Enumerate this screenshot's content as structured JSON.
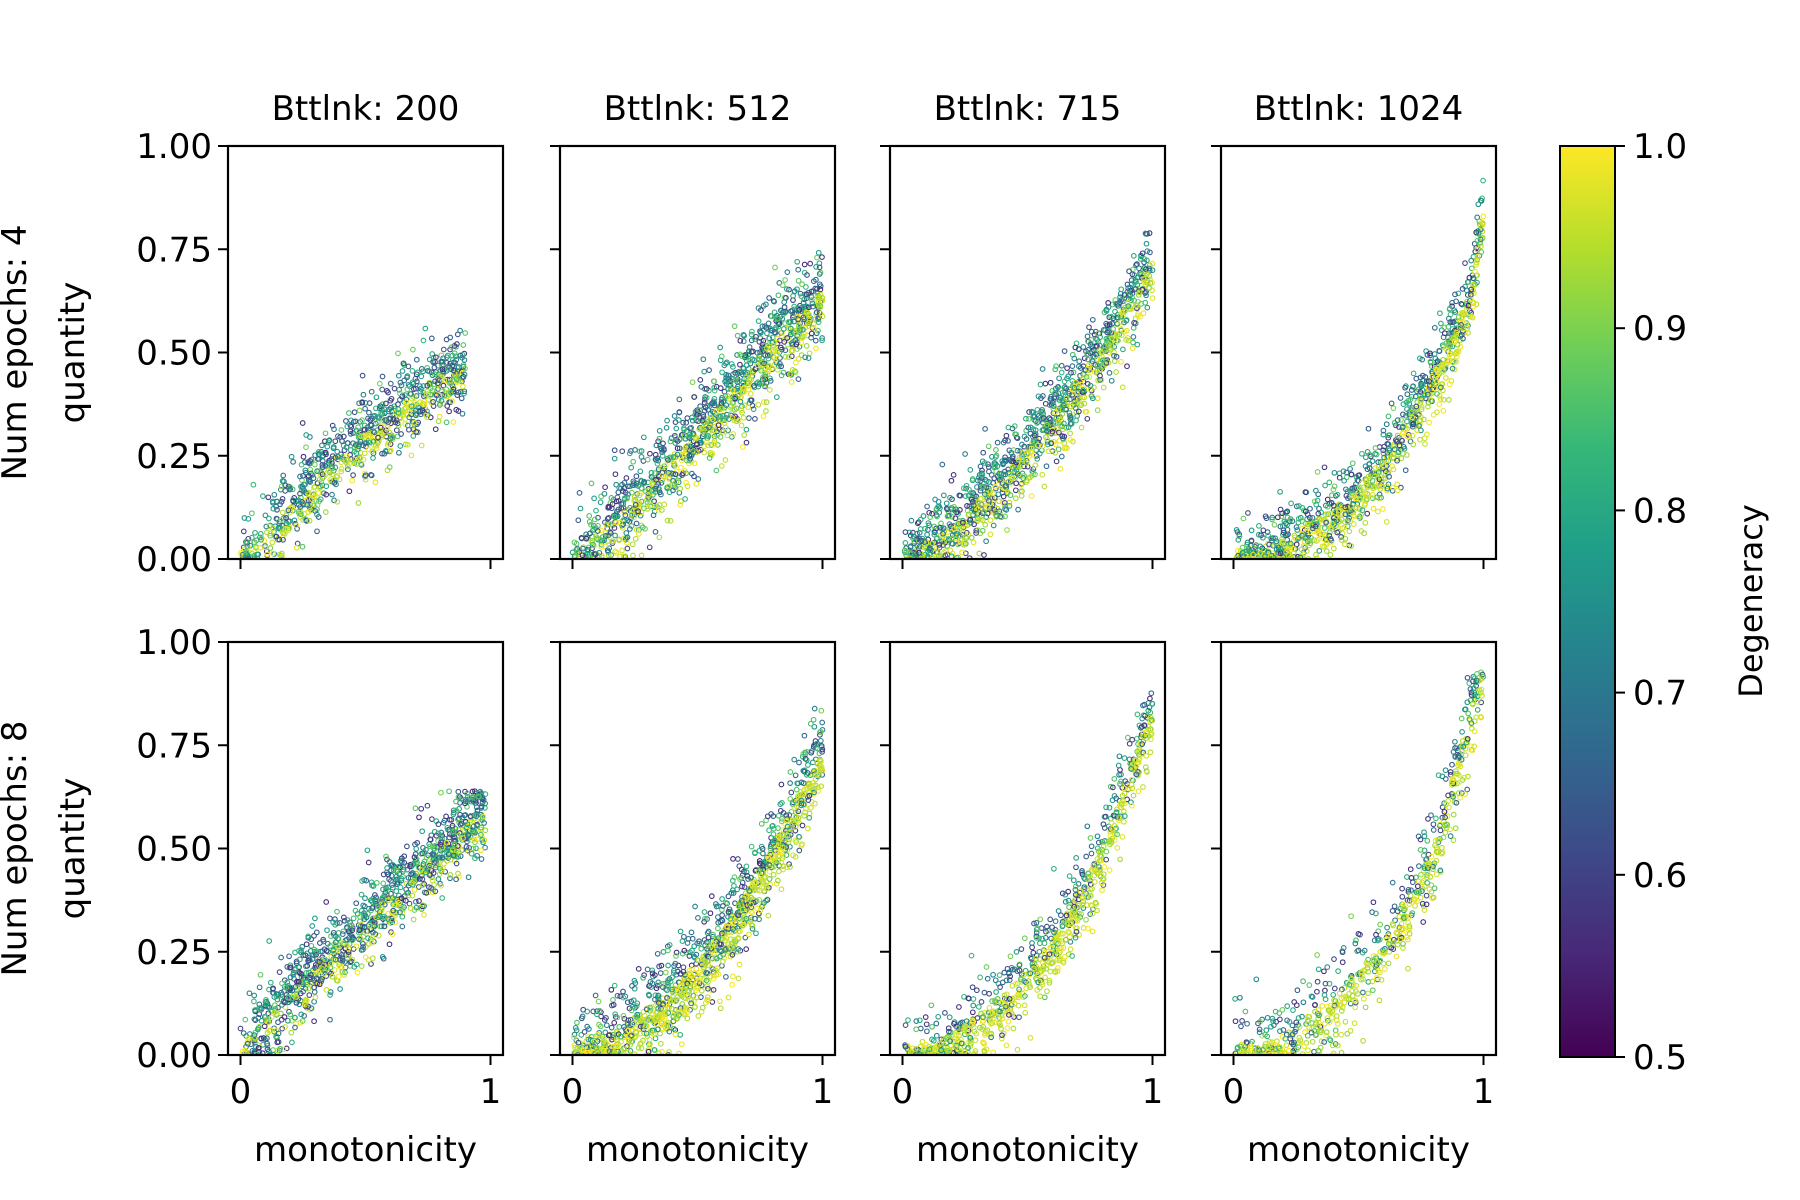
{
  "figure": {
    "colorbar": {
      "label": "Degeneracy",
      "range": [
        0.5,
        1.0
      ],
      "ticks": [
        "0.5",
        "0.6",
        "0.7",
        "0.8",
        "0.9",
        "1.0"
      ],
      "colormap": [
        "#440154",
        "#482878",
        "#3e4989",
        "#31688e",
        "#26828e",
        "#1f9e89",
        "#35b779",
        "#6ece58",
        "#b5de2b",
        "#fde725"
      ]
    }
  },
  "chart_data": {
    "type": "scatter",
    "layout": "2 rows x 4 columns of scatter panels",
    "column_titles": [
      "Bttlnk: 200",
      "Bttlnk: 512",
      "Bttlnk: 715",
      "Bttlnk: 1024"
    ],
    "row_labels": [
      [
        "Num epochs: 4",
        "quantity"
      ],
      [
        "Num epochs: 8",
        "quantity"
      ]
    ],
    "xlabel": "monotonicity",
    "xlim": [
      -0.05,
      1.05
    ],
    "ylim": [
      0,
      1
    ],
    "x_ticks": [
      "0",
      "1"
    ],
    "y_ticks": [
      "0.00",
      "0.25",
      "0.50",
      "0.75",
      "1.00"
    ],
    "color_value": "Degeneracy",
    "color_range": [
      0.5,
      1.0
    ],
    "grid": false,
    "panels": [
      {
        "row": 0,
        "col": 0,
        "title": "Bttlnk: 200",
        "x_range": [
          0.0,
          0.9
        ],
        "y_max": 0.65,
        "trend": [
          [
            0,
            0.02
          ],
          [
            0.2,
            0.13
          ],
          [
            0.4,
            0.26
          ],
          [
            0.6,
            0.35
          ],
          [
            0.8,
            0.45
          ],
          [
            0.9,
            0.47
          ]
        ],
        "spread": 0.06,
        "yellow_share": 0.25,
        "n_points": 900
      },
      {
        "row": 0,
        "col": 1,
        "title": "Bttlnk: 512",
        "x_range": [
          0.0,
          1.0
        ],
        "y_max": 0.79,
        "trend": [
          [
            0,
            0.01
          ],
          [
            0.2,
            0.12
          ],
          [
            0.4,
            0.25
          ],
          [
            0.6,
            0.38
          ],
          [
            0.8,
            0.53
          ],
          [
            1.0,
            0.65
          ]
        ],
        "spread": 0.07,
        "yellow_share": 0.3,
        "n_points": 1200
      },
      {
        "row": 0,
        "col": 2,
        "title": "Bttlnk: 715",
        "x_range": [
          0.0,
          1.0
        ],
        "y_max": 0.85,
        "trend": [
          [
            0,
            0.01
          ],
          [
            0.2,
            0.08
          ],
          [
            0.4,
            0.2
          ],
          [
            0.6,
            0.35
          ],
          [
            0.8,
            0.52
          ],
          [
            1.0,
            0.72
          ]
        ],
        "spread": 0.06,
        "yellow_share": 0.3,
        "n_points": 1200
      },
      {
        "row": 0,
        "col": 3,
        "title": "Bttlnk: 1024",
        "x_range": [
          0.0,
          1.0
        ],
        "y_max": 0.98,
        "trend": [
          [
            0,
            0.0
          ],
          [
            0.2,
            0.05
          ],
          [
            0.4,
            0.12
          ],
          [
            0.6,
            0.24
          ],
          [
            0.8,
            0.45
          ],
          [
            0.95,
            0.65
          ],
          [
            1.0,
            0.85
          ]
        ],
        "spread": 0.06,
        "yellow_share": 0.45,
        "n_points": 1100
      },
      {
        "row": 1,
        "col": 0,
        "title": "Bttlnk: 200",
        "x_range": [
          0.0,
          0.98
        ],
        "y_max": 0.64,
        "trend": [
          [
            0,
            0.02
          ],
          [
            0.2,
            0.15
          ],
          [
            0.4,
            0.27
          ],
          [
            0.6,
            0.39
          ],
          [
            0.8,
            0.5
          ],
          [
            0.95,
            0.6
          ]
        ],
        "spread": 0.06,
        "yellow_share": 0.2,
        "n_points": 1100
      },
      {
        "row": 1,
        "col": 1,
        "title": "Bttlnk: 512",
        "x_range": [
          0.0,
          1.0
        ],
        "y_max": 0.93,
        "trend": [
          [
            0,
            0.0
          ],
          [
            0.2,
            0.07
          ],
          [
            0.4,
            0.16
          ],
          [
            0.6,
            0.3
          ],
          [
            0.8,
            0.5
          ],
          [
            1.0,
            0.75
          ]
        ],
        "spread": 0.07,
        "yellow_share": 0.5,
        "n_points": 1300
      },
      {
        "row": 1,
        "col": 2,
        "title": "Bttlnk: 715",
        "x_range": [
          0.0,
          1.0
        ],
        "y_max": 0.98,
        "trend": [
          [
            0,
            0.0
          ],
          [
            0.2,
            0.05
          ],
          [
            0.4,
            0.14
          ],
          [
            0.6,
            0.28
          ],
          [
            0.8,
            0.5
          ],
          [
            1.0,
            0.85
          ]
        ],
        "spread": 0.06,
        "yellow_share": 0.55,
        "n_points": 900
      },
      {
        "row": 1,
        "col": 3,
        "title": "Bttlnk: 1024",
        "x_range": [
          0.0,
          1.0
        ],
        "y_max": 1.0,
        "trend": [
          [
            0,
            0.0
          ],
          [
            0.2,
            0.05
          ],
          [
            0.4,
            0.14
          ],
          [
            0.6,
            0.28
          ],
          [
            0.8,
            0.5
          ],
          [
            1.0,
            0.95
          ]
        ],
        "spread": 0.07,
        "yellow_share": 0.55,
        "n_points": 700
      }
    ]
  }
}
